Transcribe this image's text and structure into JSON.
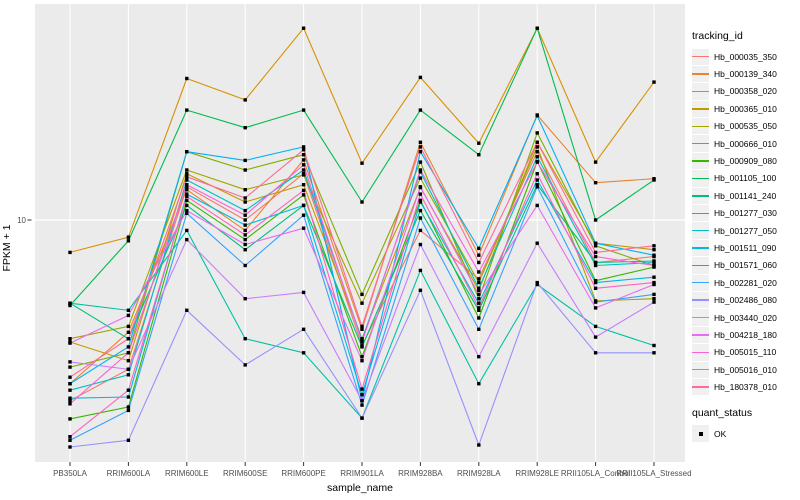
{
  "chart_data": {
    "type": "line",
    "title": "",
    "xlabel": "sample_name",
    "ylabel": "FPKM + 1",
    "y_scale": "log10",
    "y_ticks": [
      10
    ],
    "y_tick_labels": [
      "10"
    ],
    "ylim_approx": [
      0.86,
      90
    ],
    "grid": "major-only",
    "panel_bg": "#EBEBEB",
    "grid_color": "#FFFFFF",
    "tick_text_color": "#4D4D4D",
    "point_marker": "filled-black-square",
    "categories": [
      "PB350LA",
      "RRIM600LA",
      "RRIM600LE",
      "RRIM600SE",
      "RRIM600PE",
      "RRIM901LA",
      "RRIM928BA",
      "RRIM928LA",
      "RRIM928LE",
      "RRII105LA_Control",
      "RRII105LA_Stressed"
    ],
    "series": [
      {
        "name": "Hb_000035_350",
        "color": "#F8766D",
        "values": [
          1.6,
          2.2,
          14.0,
          10.0,
          16.0,
          2.8,
          9.0,
          5.5,
          20.0,
          6.5,
          6.9
        ]
      },
      {
        "name": "Hb_000139_340",
        "color": "#EA8331",
        "values": [
          1.9,
          3.2,
          13.6,
          9.0,
          18.4,
          3.3,
          22.0,
          7.0,
          29.0,
          14.6,
          15.2
        ]
      },
      {
        "name": "Hb_000358_020",
        "color": "#D89000",
        "values": [
          7.2,
          8.4,
          42.0,
          33.8,
          70.0,
          17.8,
          42.5,
          21.8,
          70.0,
          18.0,
          40.5
        ]
      },
      {
        "name": "Hb_000365_010",
        "color": "#C09B00",
        "values": [
          2.9,
          2.4,
          16.0,
          12.0,
          14.3,
          3.0,
          13.9,
          4.9,
          22.0,
          7.9,
          7.4
        ]
      },
      {
        "name": "Hb_000535_050",
        "color": "#A3A500",
        "values": [
          3.0,
          3.4,
          16.6,
          13.6,
          15.8,
          4.3,
          15.3,
          5.3,
          21.0,
          4.4,
          4.5
        ]
      },
      {
        "name": "Hb_000666_010",
        "color": "#7CAE00",
        "values": [
          2.25,
          2.6,
          20.0,
          16.6,
          19.4,
          4.7,
          18.0,
          4.5,
          24.2,
          7.7,
          6.3
        ]
      },
      {
        "name": "Hb_000909_080",
        "color": "#39B600",
        "values": [
          1.33,
          1.5,
          12.2,
          8.2,
          12.9,
          2.5,
          12.2,
          3.7,
          18.1,
          5.4,
          6.2
        ]
      },
      {
        "name": "Hb_001105_100",
        "color": "#00BB4E",
        "values": [
          4.2,
          8.1,
          30.5,
          25.5,
          30.5,
          12.0,
          30.5,
          19.4,
          70.0,
          10.0,
          15.0
        ]
      },
      {
        "name": "Hb_001141_240",
        "color": "#00BF7D",
        "values": [
          4.3,
          3.0,
          11.6,
          7.4,
          11.6,
          2.76,
          11.0,
          4.0,
          14.3,
          6.5,
          6.6
        ]
      },
      {
        "name": "Hb_001277_030",
        "color": "#00C1A3",
        "values": [
          4.3,
          4.0,
          9.0,
          3.0,
          2.6,
          1.34,
          6.0,
          1.9,
          5.2,
          3.4,
          2.8
        ]
      },
      {
        "name": "Hb_001277_050",
        "color": "#00BFC4",
        "values": [
          1.78,
          2.08,
          15.0,
          11.0,
          16.6,
          2.96,
          16.3,
          5.0,
          19.0,
          6.3,
          6.5
        ]
      },
      {
        "name": "Hb_001511_090",
        "color": "#00BAE0",
        "values": [
          1.64,
          1.66,
          13.0,
          9.5,
          11.6,
          1.7,
          12.0,
          4.3,
          15.0,
          5.3,
          5.6
        ]
      },
      {
        "name": "Hb_001571_060",
        "color": "#00B0F6",
        "values": [
          1.9,
          2.76,
          20.0,
          18.3,
          21.0,
          1.6,
          20.0,
          7.5,
          28.8,
          7.9,
          7.0
        ]
      },
      {
        "name": "Hb_002281_020",
        "color": "#35A2FF",
        "values": [
          1.07,
          1.45,
          10.7,
          6.3,
          10.5,
          1.53,
          10.2,
          3.3,
          14.0,
          4.35,
          4.7
        ]
      },
      {
        "name": "Hb_002486_080",
        "color": "#9590FF",
        "values": [
          1.0,
          1.07,
          4.0,
          2.3,
          3.3,
          1.34,
          4.9,
          1.02,
          5.3,
          2.6,
          2.6
        ]
      },
      {
        "name": "Hb_003440_020",
        "color": "#C77CFF",
        "values": [
          2.37,
          2.2,
          8.2,
          4.5,
          4.8,
          1.6,
          7.8,
          2.5,
          7.9,
          3.05,
          4.35
        ]
      },
      {
        "name": "Hb_004218_180",
        "color": "#E76BF3",
        "values": [
          2.87,
          3.8,
          11.0,
          7.8,
          9.2,
          2.4,
          14.0,
          4.7,
          11.6,
          4.1,
          5.2
        ]
      },
      {
        "name": "Hb_005015_110",
        "color": "#FA62DB",
        "values": [
          1.55,
          2.6,
          14.3,
          10.5,
          17.5,
          2.9,
          16.6,
          5.9,
          18.0,
          6.9,
          6.3
        ]
      },
      {
        "name": "Hb_005016_010",
        "color": "#FF62BC",
        "values": [
          1.11,
          1.78,
          12.7,
          8.6,
          13.5,
          1.8,
          13.0,
          4.1,
          16.0,
          5.0,
          5.3
        ]
      },
      {
        "name": "Hb_180378_010",
        "color": "#FF6A98",
        "values": [
          2.03,
          3.0,
          15.5,
          12.5,
          20.4,
          3.4,
          21.0,
          6.5,
          22.0,
          7.2,
          7.7
        ]
      }
    ],
    "legend_position": "right"
  },
  "legend": {
    "tracking_title": "tracking_id",
    "quant_title": "quant_status",
    "quant_items": [
      {
        "label": "OK",
        "marker": "black-square"
      }
    ]
  }
}
